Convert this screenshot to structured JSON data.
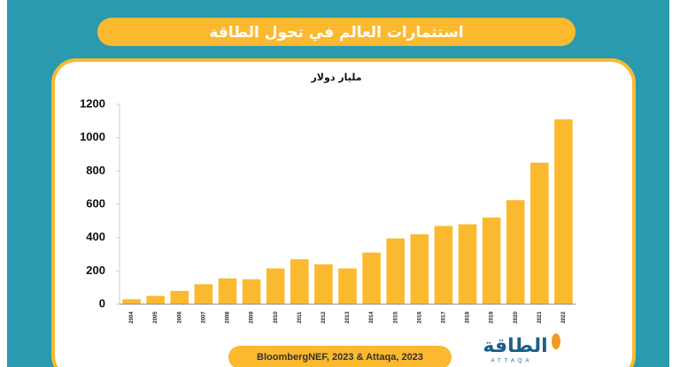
{
  "chart_data": {
    "type": "bar",
    "title": "استثمارات العالم في تحول الطاقة",
    "y_label": "مليار دولار",
    "categories": [
      "2004",
      "2005",
      "2006",
      "2007",
      "2008",
      "2009",
      "2010",
      "2011",
      "2012",
      "2013",
      "2014",
      "2015",
      "2016",
      "2017",
      "2018",
      "2019",
      "2020",
      "2021",
      "2022"
    ],
    "values": [
      30,
      50,
      80,
      120,
      155,
      150,
      215,
      270,
      240,
      215,
      310,
      395,
      420,
      470,
      480,
      520,
      625,
      850,
      1110
    ],
    "color": "#fbb92f",
    "ylim": [
      0,
      1200
    ],
    "yticks": [
      0,
      200,
      400,
      600,
      800,
      1000,
      1200
    ],
    "grid": false,
    "source": "BloombergNEF, 2023 & Attaqa, 2023",
    "logo": "الطاقة",
    "logo_latin": "ATTAQA"
  }
}
